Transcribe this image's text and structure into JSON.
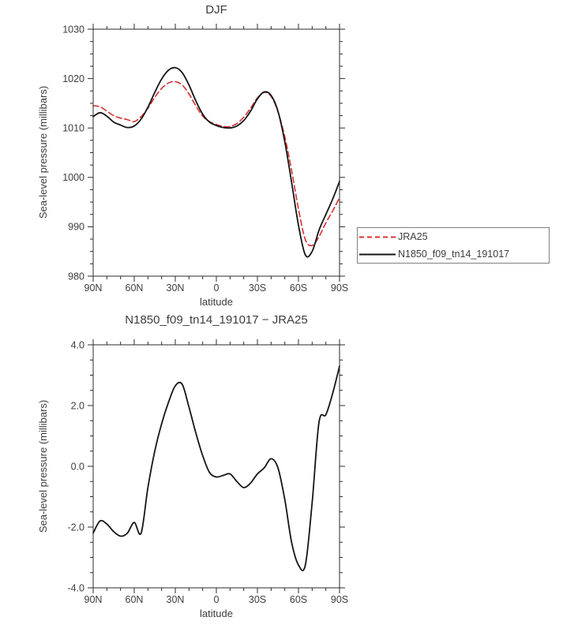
{
  "page": {
    "background": "#ffffff",
    "text_color": "#3d3d3d"
  },
  "chart_data": [
    {
      "type": "line",
      "title": "DJF",
      "xlabel": "latitude",
      "ylabel": "Sea-level pressure (millibars)",
      "xlim": [
        90,
        -90
      ],
      "ylim": [
        980,
        1030
      ],
      "grid": false,
      "legend_position": "right-of-plot",
      "xticks": {
        "values": [
          90,
          60,
          30,
          0,
          -30,
          -60,
          -90
        ],
        "labels": [
          "90N",
          "60N",
          "30N",
          "0",
          "30S",
          "60S",
          "90S"
        ],
        "minor_step": 10
      },
      "yticks": {
        "values": [
          1030,
          1020,
          1010,
          1000,
          990,
          980
        ],
        "labels": [
          "1030",
          "1020",
          "1010",
          "1000",
          "990",
          "980"
        ],
        "minor_step": 2.5
      },
      "x": [
        90,
        85,
        80,
        75,
        70,
        65,
        60,
        55,
        50,
        45,
        40,
        35,
        30,
        25,
        20,
        15,
        10,
        5,
        0,
        -5,
        -10,
        -15,
        -20,
        -25,
        -30,
        -35,
        -40,
        -45,
        -50,
        -55,
        -60,
        -65,
        -70,
        -75,
        -80,
        -85,
        -90
      ],
      "series": [
        {
          "name": "JRA25",
          "color": "#d93030",
          "dash": true,
          "values": [
            1014.5,
            1014.3,
            1013.4,
            1012.5,
            1012.0,
            1011.7,
            1011.3,
            1012.3,
            1014.0,
            1016.2,
            1018.0,
            1019.1,
            1019.4,
            1018.7,
            1016.9,
            1014.5,
            1012.4,
            1011.3,
            1010.7,
            1010.3,
            1010.3,
            1010.9,
            1012.2,
            1014.0,
            1016.1,
            1017.2,
            1016.4,
            1013.3,
            1008.2,
            1001.4,
            993.6,
            987.4,
            986.2,
            988.0,
            990.8,
            993.2,
            995.9
          ]
        },
        {
          "name": "N1850_f09_tn14_191017",
          "color": "#151515",
          "dash": false,
          "values": [
            1012.3,
            1013.1,
            1012.4,
            1011.2,
            1010.6,
            1010.1,
            1010.4,
            1011.8,
            1014.2,
            1017.2,
            1019.9,
            1021.7,
            1022.2,
            1021.2,
            1018.7,
            1015.5,
            1012.8,
            1011.2,
            1010.5,
            1010.1,
            1010.0,
            1010.4,
            1011.5,
            1013.4,
            1015.9,
            1017.3,
            1016.6,
            1013.4,
            1007.2,
            999.0,
            990.3,
            984.3,
            985.0,
            989.3,
            992.5,
            995.6,
            999.2
          ]
        }
      ]
    },
    {
      "type": "line",
      "title": "N1850_f09_tn14_191017 − JRA25",
      "xlabel": "latitude",
      "ylabel": "Sea-level pressure (millibars)",
      "xlim": [
        90,
        -90
      ],
      "ylim": [
        -4.0,
        4.0
      ],
      "grid": false,
      "xticks": {
        "values": [
          90,
          60,
          30,
          0,
          -30,
          -60,
          -90
        ],
        "labels": [
          "90N",
          "60N",
          "30N",
          "0",
          "30S",
          "60S",
          "90S"
        ],
        "minor_step": 10
      },
      "yticks": {
        "values": [
          4.0,
          2.0,
          0.0,
          -2.0,
          -4.0
        ],
        "labels": [
          "4.0",
          "2.0",
          "0.0",
          "-2.0",
          "-4.0"
        ],
        "minor_step": 0.5
      },
      "x": [
        90,
        85,
        80,
        75,
        70,
        65,
        60,
        55,
        50,
        45,
        40,
        35,
        30,
        25,
        20,
        15,
        10,
        5,
        0,
        -5,
        -10,
        -15,
        -20,
        -25,
        -30,
        -35,
        -40,
        -45,
        -50,
        -55,
        -60,
        -65,
        -70,
        -75,
        -80,
        -85,
        -90
      ],
      "series": [
        {
          "name": "N1850_f09_tn14_191017 − JRA25",
          "color": "#151515",
          "dash": false,
          "values": [
            -2.2,
            -1.8,
            -1.9,
            -2.15,
            -2.3,
            -2.2,
            -1.85,
            -2.2,
            -0.7,
            0.5,
            1.4,
            2.1,
            2.65,
            2.7,
            1.95,
            1.1,
            0.35,
            -0.2,
            -0.35,
            -0.3,
            -0.25,
            -0.5,
            -0.7,
            -0.55,
            -0.25,
            -0.05,
            0.25,
            -0.05,
            -1.1,
            -2.5,
            -3.25,
            -3.25,
            -1.2,
            1.45,
            1.7,
            2.4,
            3.3
          ]
        }
      ]
    }
  ],
  "legend": {
    "entries": [
      {
        "label": "JRA25"
      },
      {
        "label": "N1850_f09_tn14_191017"
      }
    ]
  }
}
